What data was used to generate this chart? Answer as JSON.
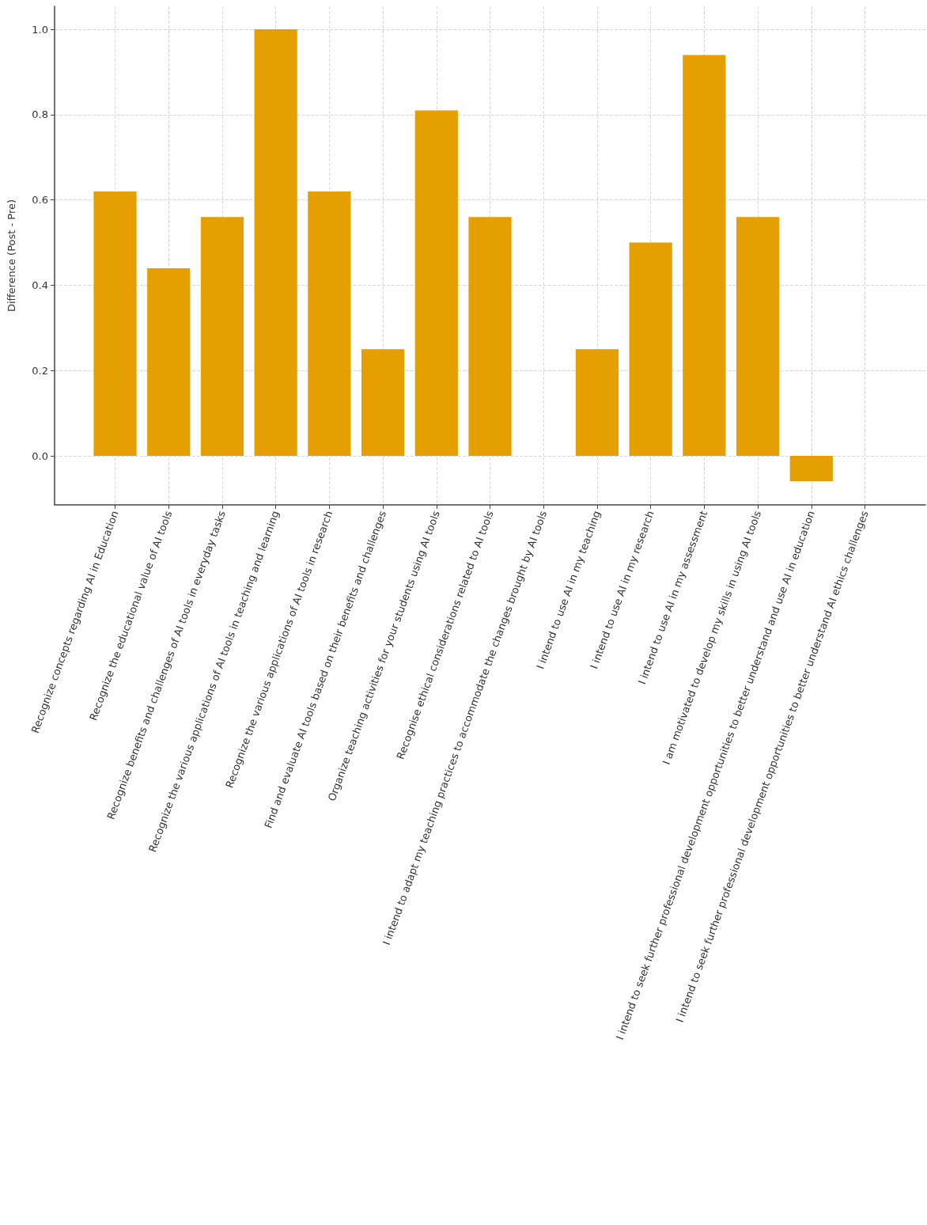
{
  "chart_data": {
    "type": "bar",
    "ylabel": "Difference (Post - Pre)",
    "categories": [
      "Recognize concepts regarding AI in Education",
      "Recognize the educational value of AI tools",
      "Recognize benefits and challenges of AI tools in everyday tasks",
      "Recognize the various applications of AI tools in teaching and learning",
      "Recognize the various applications of AI tools in research",
      "Find and evaluate AI tools based on their benefits and challenges",
      "Organize teaching activities for your students using AI tools",
      "Recognise ethical considerations related to AI tools",
      "I intend to adapt my teaching practices to accommodate the changes brought by AI tools",
      "I intend to use AI in my teaching",
      "I intend to use AI in my research",
      "I intend to use AI in my assessment",
      "I am motivated to develop my skills in using AI tools",
      "I intend to seek further professional development opportunities to better understand and use AI in education",
      "I intend to seek further professional development opportunities to better understand AI ethics challenges"
    ],
    "values": [
      0.62,
      0.44,
      0.56,
      1.0,
      0.62,
      0.25,
      0.81,
      0.56,
      0,
      0.25,
      0.5,
      0.94,
      0.56,
      -0.06,
      0
    ],
    "color": "#e69f00",
    "ylim": [
      -0.115,
      1.054
    ],
    "yticks": [
      {
        "value": 0,
        "label": "0.0"
      },
      {
        "value": 0.2,
        "label": "0.2"
      },
      {
        "value": 0.4,
        "label": "0.4"
      },
      {
        "value": 0.6,
        "label": "0.6"
      },
      {
        "value": 0.8,
        "label": "0.8"
      },
      {
        "value": 1,
        "label": "1.0"
      }
    ],
    "grid": true
  }
}
